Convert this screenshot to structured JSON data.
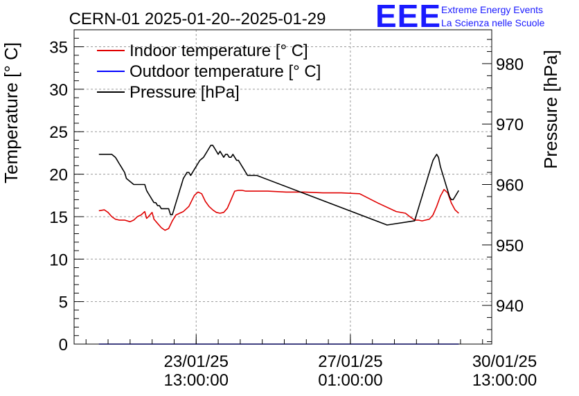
{
  "chart_data": {
    "type": "line",
    "title": "CERN-01 2025-01-20--2025-01-29",
    "ylabel_left": "Temperature [° C]",
    "ylabel_right": "Pressure [hPa]",
    "x_range_hours": [
      -5.5,
      222
    ],
    "x_ticks": [
      {
        "hours": 61,
        "line1": "23/01/25",
        "line2": "13:00:00"
      },
      {
        "hours": 145,
        "line1": "27/01/25",
        "line2": "01:00:00"
      },
      {
        "hours": 229,
        "line1": "30/01/25",
        "line2": "13:00:00"
      }
    ],
    "y_left_range": [
      0,
      37
    ],
    "y_left_ticks": [
      0,
      5,
      10,
      15,
      20,
      25,
      30,
      35
    ],
    "y_right_range": [
      933.6,
      985.6
    ],
    "y_right_ticks": [
      940,
      950,
      960,
      970,
      980
    ],
    "grid": true,
    "legend_position": "top-left",
    "series": [
      {
        "name": "Indoor temperature [° C]",
        "color": "#e00000",
        "axis": "left",
        "x": [
          8,
          11,
          13,
          15,
          17,
          19,
          22,
          25,
          27,
          29,
          31,
          33,
          34,
          35,
          37,
          38,
          40,
          42,
          44,
          46,
          48,
          50,
          52,
          54,
          57,
          60,
          62,
          64,
          66,
          68,
          70,
          72,
          74,
          76,
          78,
          80,
          82,
          84,
          86,
          88,
          90,
          100,
          110,
          120,
          130,
          140,
          150,
          160,
          170,
          175,
          178,
          180,
          182,
          184,
          186,
          188,
          190,
          192,
          194,
          196,
          198,
          200,
          202,
          204
        ],
        "y": [
          15.7,
          15.8,
          15.5,
          15.0,
          14.7,
          14.6,
          14.6,
          14.4,
          14.6,
          15.0,
          15.2,
          15.6,
          14.8,
          15.0,
          15.5,
          14.7,
          14.2,
          13.7,
          13.4,
          13.6,
          14.5,
          15.2,
          15.4,
          15.6,
          16.2,
          17.5,
          17.9,
          17.7,
          16.8,
          16.2,
          15.8,
          15.5,
          15.4,
          15.5,
          16.0,
          17.0,
          18.0,
          18.1,
          18.1,
          18.0,
          18.0,
          18.0,
          17.9,
          17.9,
          17.8,
          17.8,
          17.7,
          16.6,
          15.6,
          15.4,
          14.9,
          14.6,
          14.6,
          14.5,
          14.6,
          14.7,
          15.2,
          16.2,
          17.4,
          18.2,
          17.8,
          16.6,
          15.8,
          15.4
        ]
      },
      {
        "name": "Outdoor temperature [° C]",
        "color": "#0000ff",
        "axis": "left",
        "x": [
          8,
          204
        ],
        "y": [
          0,
          0
        ]
      },
      {
        "name": "Pressure [hPa]",
        "color": "#000000",
        "axis": "right",
        "x": [
          8,
          15,
          17,
          18,
          19,
          20,
          21,
          22,
          23,
          25,
          27,
          28,
          29,
          33,
          34,
          35,
          36,
          37,
          38,
          39,
          40,
          41,
          42,
          43,
          46,
          47,
          48,
          49,
          50,
          51,
          52,
          53,
          54,
          55,
          56,
          57,
          58,
          59,
          60,
          61,
          62,
          63,
          65,
          66,
          67,
          68,
          69,
          70,
          71,
          72,
          73,
          74,
          75,
          76,
          77,
          78,
          79,
          80,
          81,
          82,
          83,
          84,
          85,
          86,
          87,
          88,
          89,
          90,
          91,
          94,
          165,
          180,
          181,
          182,
          183,
          184,
          185,
          186,
          187,
          188,
          189,
          190,
          191,
          192,
          193,
          194,
          195,
          196,
          197,
          198,
          199,
          200,
          201,
          202,
          203,
          204
        ],
        "y": [
          965,
          965,
          964.5,
          964,
          963.5,
          963,
          962.5,
          962,
          961,
          960.5,
          960,
          960,
          960,
          960,
          959,
          958.5,
          958,
          957.5,
          957,
          957,
          956.5,
          956.5,
          956,
          956,
          956,
          955,
          955,
          956,
          957,
          958,
          959,
          960,
          961,
          961.5,
          962,
          962,
          961.5,
          962,
          962.5,
          963,
          963.5,
          964,
          964.5,
          965,
          965.5,
          966,
          966.5,
          966.5,
          966,
          965.5,
          965,
          965.5,
          965,
          964.5,
          965,
          965,
          964.5,
          964.5,
          965,
          964.5,
          964,
          964,
          963.5,
          963,
          962.5,
          962,
          961.5,
          961.5,
          961.5,
          961.5,
          953.3,
          954,
          955,
          956,
          957,
          958,
          959,
          960,
          961,
          962,
          963,
          964,
          964.5,
          965,
          964.5,
          963,
          962,
          961,
          960,
          959,
          958,
          957.5,
          957.5,
          958,
          958.5,
          959
        ]
      }
    ]
  },
  "logo": {
    "mark": "EEE",
    "line1": "Extreme Energy Events",
    "line2": "La Scienza nelle Scuole"
  }
}
